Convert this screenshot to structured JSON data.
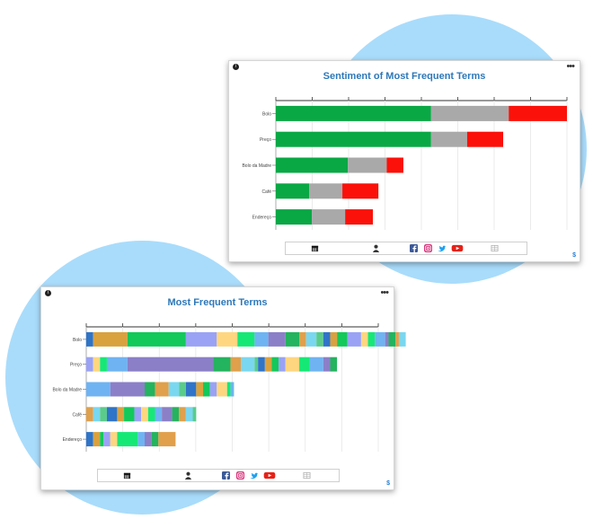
{
  "colors": {
    "blob": "#a9dcfb",
    "title": "#2d78b9",
    "positive": "#0aa745",
    "neutral": "#a9a9a9",
    "negative": "#fb1109"
  },
  "icons": {
    "info": "info-icon",
    "menu": "more-dots-icon",
    "calendar": "calendar-icon",
    "user": "user-icon",
    "facebook": "facebook-icon",
    "instagram": "instagram-icon",
    "twitter": "twitter-icon",
    "youtube": "youtube-icon",
    "table": "table-icon"
  },
  "top_card": {
    "menu_label": "•••",
    "info_label": "i",
    "badge": "$"
  },
  "bottom_card": {
    "menu_label": "•••",
    "info_label": "i",
    "badge": "$"
  },
  "chart_data": [
    {
      "type": "bar",
      "orientation": "horizontal",
      "stacked": true,
      "title": "Sentiment of Most Frequent Terms",
      "categories": [
        "Bolo",
        "Preço",
        "Bolo da Madre",
        "Café",
        "Endereço"
      ],
      "series": [
        {
          "values": [
            56,
            56,
            26,
            12,
            13
          ],
          "color": "#0aa745"
        },
        {
          "values": [
            28,
            13,
            14,
            12,
            12
          ],
          "color": "#a9a9a9"
        },
        {
          "values": [
            21,
            13,
            6,
            13,
            10
          ],
          "color": "#fb1109"
        }
      ],
      "xlim": [
        0,
        105
      ],
      "xticks": 9,
      "grid": true,
      "legend": "none"
    },
    {
      "type": "bar",
      "orientation": "horizontal",
      "stacked": true,
      "title": "Most Frequent Terms",
      "categories": [
        "Bolo",
        "Preço",
        "Bolo da Madre",
        "Café",
        "Endereço"
      ],
      "segments": [
        [
          2,
          10,
          17,
          9,
          6,
          5,
          4,
          5,
          4,
          2,
          3,
          2,
          2,
          2,
          3,
          4,
          2,
          2,
          3,
          1,
          2,
          1,
          2
        ],
        [
          2,
          2,
          2,
          6,
          25,
          5,
          3,
          4,
          1,
          2,
          2,
          2,
          2,
          4,
          3,
          4,
          2,
          2
        ],
        [
          7,
          10,
          3,
          4,
          3,
          2,
          3,
          2,
          2,
          2,
          3,
          1,
          1
        ],
        [
          2,
          2,
          2,
          3,
          2,
          3,
          2,
          2,
          2,
          2,
          3,
          2,
          2,
          2,
          1
        ],
        [
          2,
          2,
          1,
          2,
          2,
          6,
          2,
          2,
          2,
          5
        ]
      ],
      "segment_colors": [
        "#2f74c8",
        "#d9a23f",
        "#12c95a",
        "#9aa2f5",
        "#ffd680",
        "#16e876",
        "#6fb3f2",
        "#8b7fc8",
        "#24b35e",
        "#e0a04c",
        "#7ad7f0",
        "#5acb8b"
      ],
      "xlim": [
        0,
        85
      ],
      "xticks": 9,
      "grid": true,
      "legend": "none"
    }
  ]
}
